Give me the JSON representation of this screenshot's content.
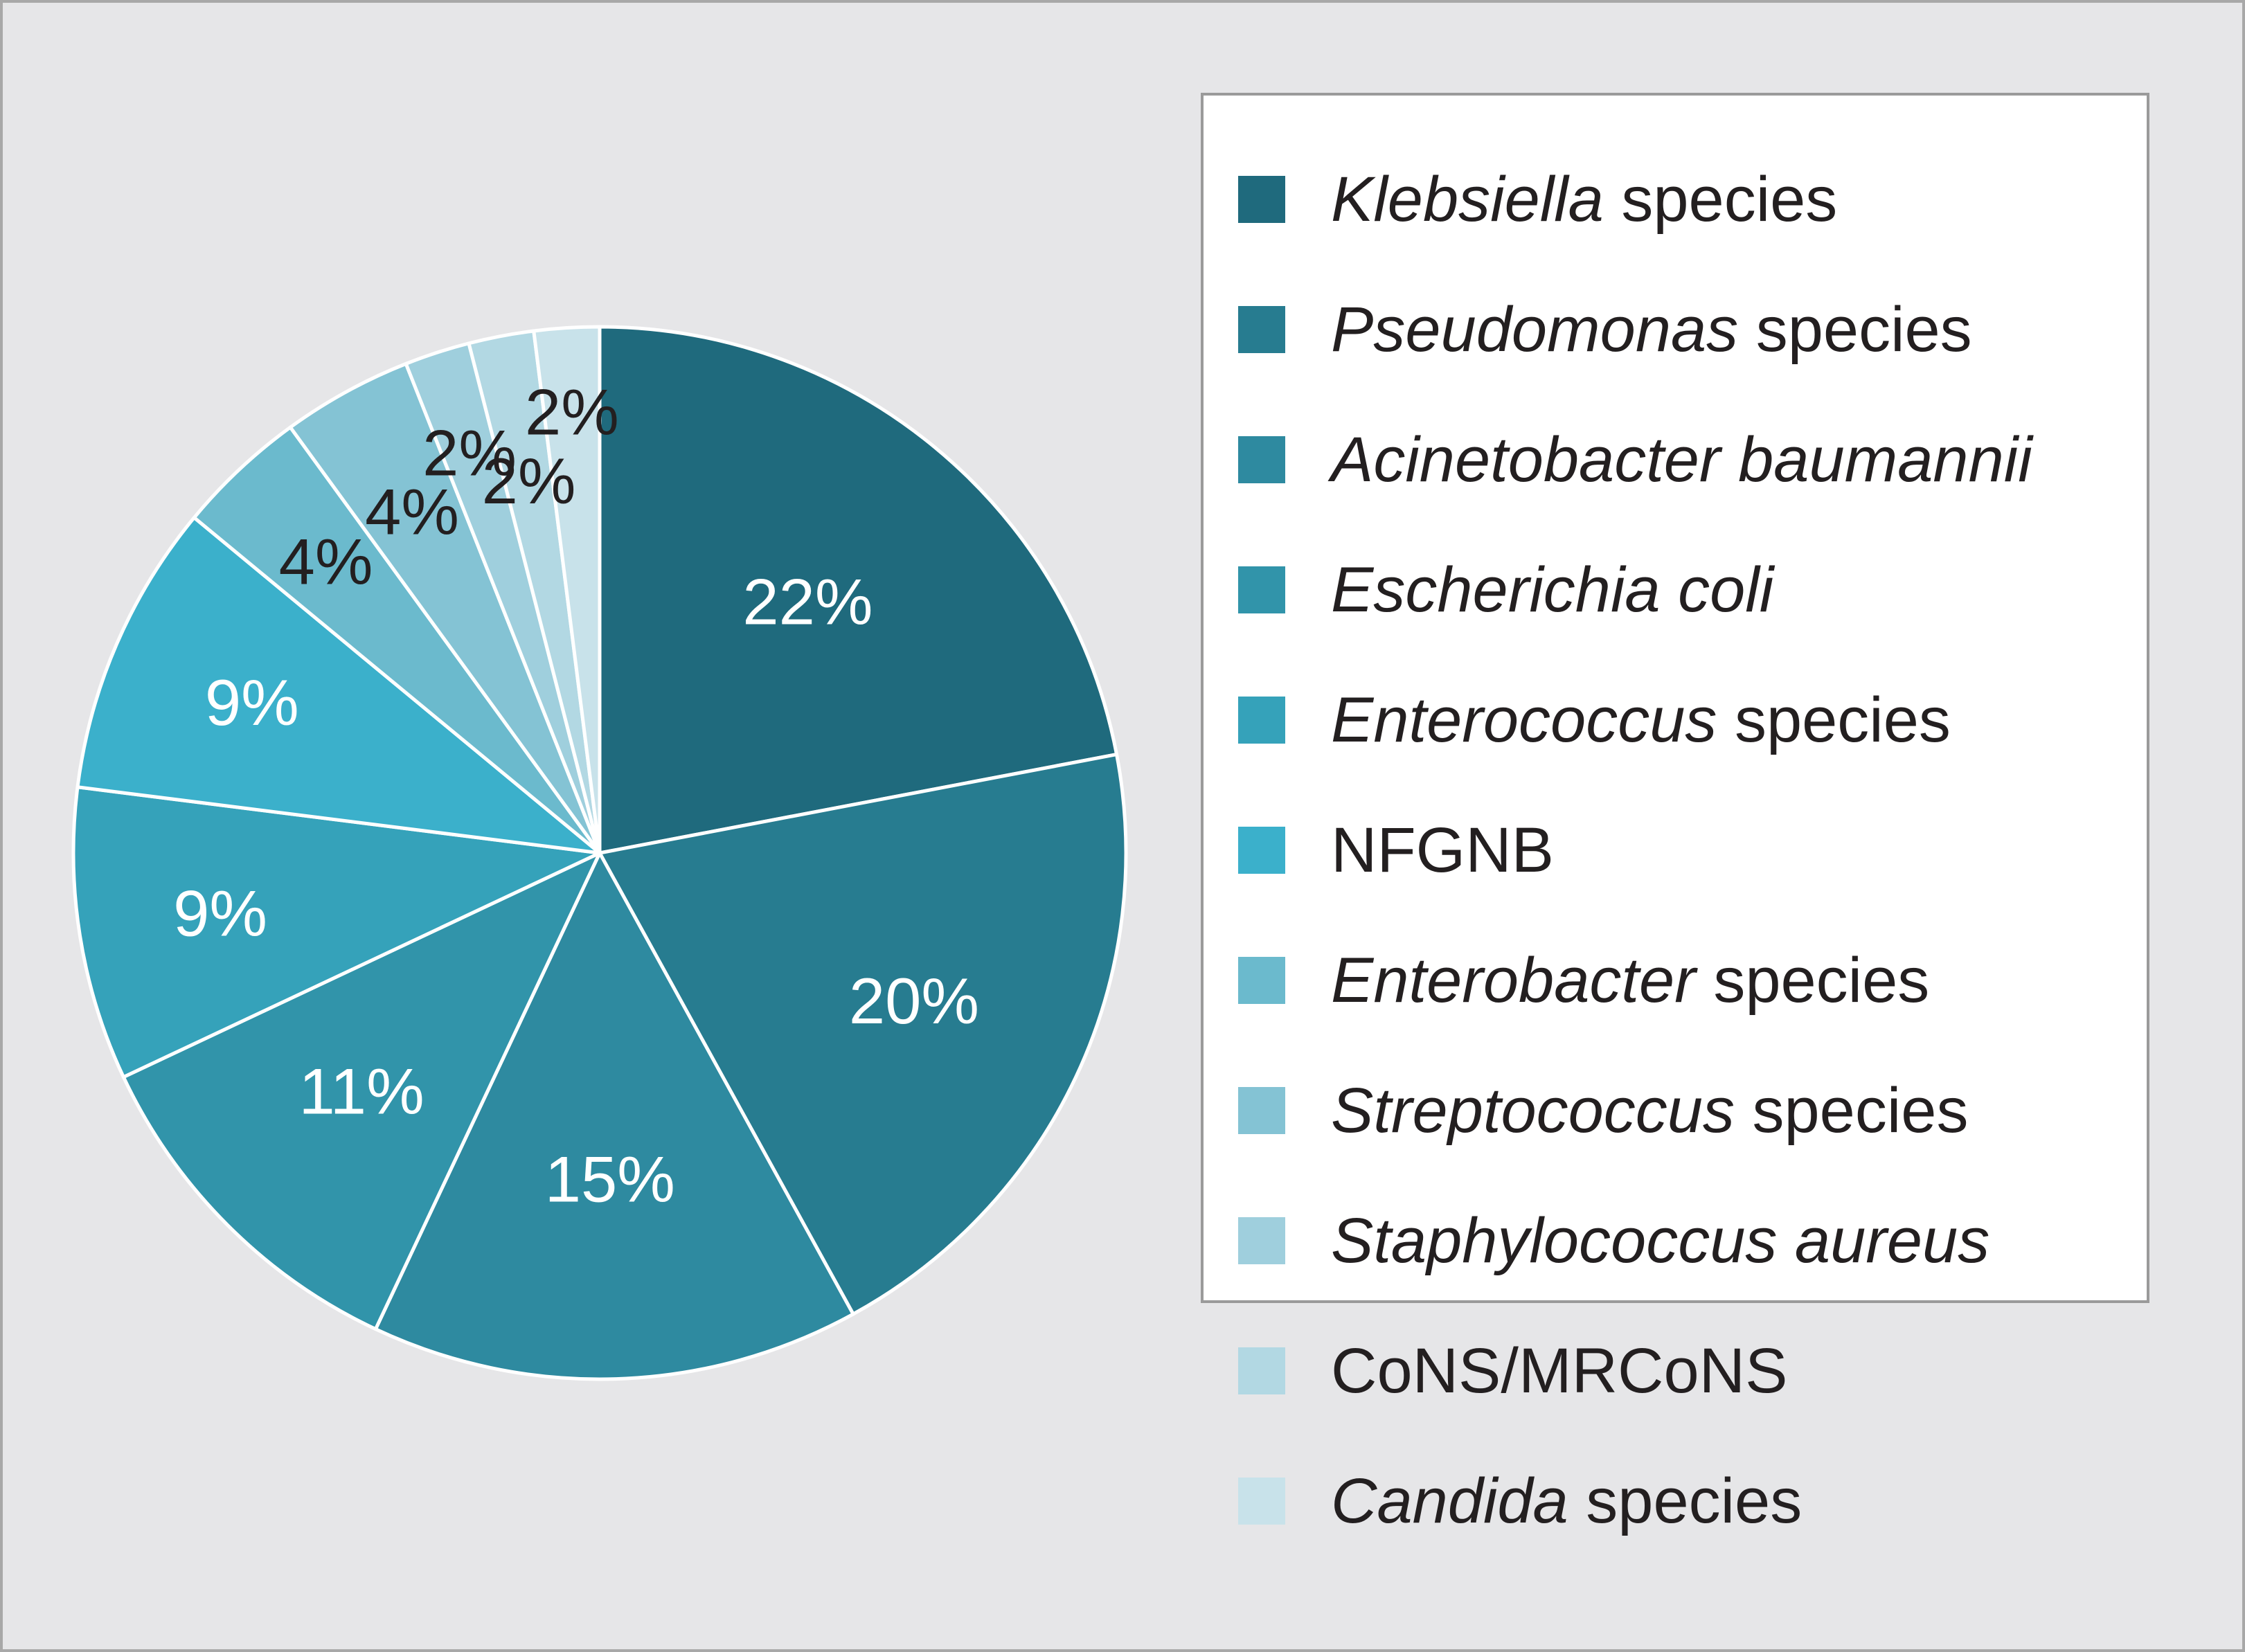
{
  "chart_data": {
    "type": "pie",
    "legend_placement": "right",
    "slices": [
      {
        "label_italic": "Klebsiella",
        "label_rest": " species",
        "value": 22,
        "value_label": "22%",
        "color": "#1f6a7d"
      },
      {
        "label_italic": "Pseudomonas",
        "label_rest": " species",
        "value": 20,
        "value_label": "20%",
        "color": "#277c90"
      },
      {
        "label_italic": "Acinetobacter baumannii",
        "label_rest": "",
        "value": 15,
        "value_label": "15%",
        "color": "#2e8aa0"
      },
      {
        "label_italic": "Escherichia coli",
        "label_rest": "",
        "value": 11,
        "value_label": "11%",
        "color": "#3194aa"
      },
      {
        "label_italic": "Enterococcus",
        "label_rest": " species",
        "value": 9,
        "value_label": "9%",
        "color": "#35a2ba"
      },
      {
        "label_italic": "",
        "label_rest": "NFGNB",
        "value": 9,
        "value_label": "9%",
        "color": "#3bb0cb"
      },
      {
        "label_italic": "Enterobacter",
        "label_rest": " species",
        "value": 4,
        "value_label": "4%",
        "color": "#6bbacd"
      },
      {
        "label_italic": "Streptococcus",
        "label_rest": " species",
        "value": 4,
        "value_label": "4%",
        "color": "#84c3d4"
      },
      {
        "label_italic": "Staphylococcus aureus",
        "label_rest": "",
        "value": 2,
        "value_label": "2%",
        "color": "#9fcfdd"
      },
      {
        "label_italic": "",
        "label_rest": "CoNS/MRCoNS",
        "value": 2,
        "value_label": "2%",
        "color": "#b2d8e3"
      },
      {
        "label_italic": "Candida",
        "label_rest": " species",
        "value": 2,
        "value_label": "2%",
        "color": "#c8e2ea"
      }
    ]
  }
}
